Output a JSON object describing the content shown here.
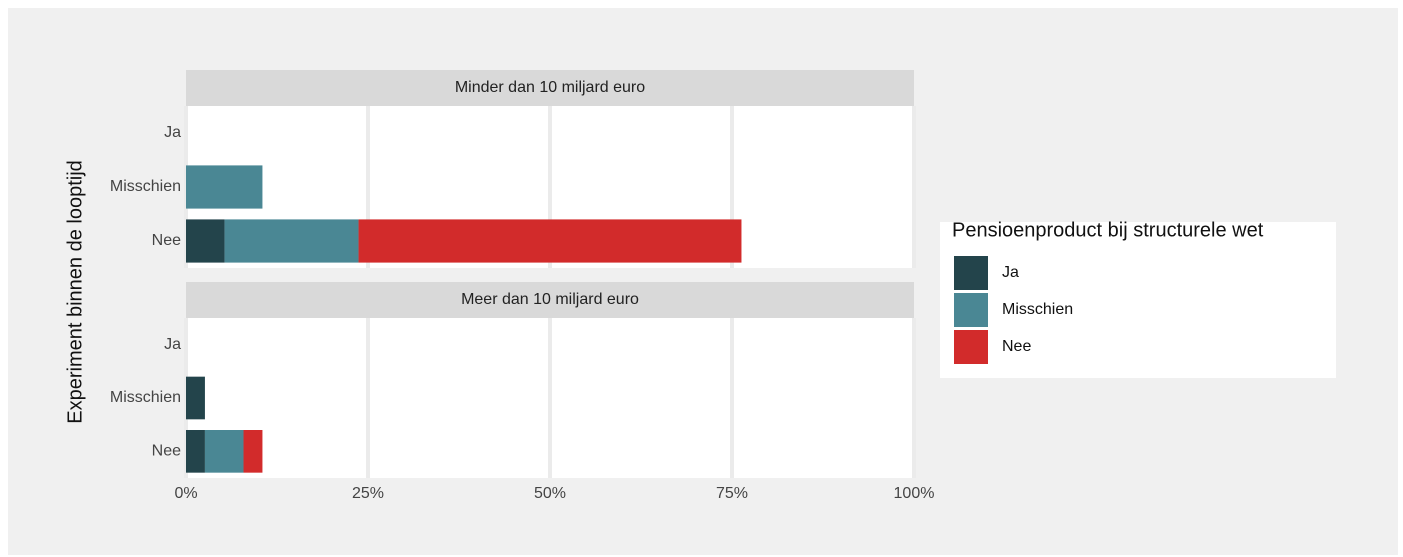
{
  "chart_data": {
    "type": "bar",
    "orientation": "horizontal",
    "stacked": true,
    "ylabel": "Experiment binnen de looptijd",
    "legend_title": "Pensioenproduct bij structurele wet",
    "legend_position": "right",
    "categories": [
      "Ja",
      "Misschien",
      "Nee"
    ],
    "facets": [
      "Minder dan 10 miljard euro",
      "Meer dan 10 miljard euro"
    ],
    "series": [
      {
        "name": "Ja",
        "color": "#23444b",
        "values": [
          [
            null,
            null,
            5.3
          ],
          [
            null,
            2.6,
            2.6
          ]
        ]
      },
      {
        "name": "Misschien",
        "color": "#4a8794",
        "values": [
          [
            null,
            10.5,
            18.4
          ],
          [
            null,
            null,
            5.3
          ]
        ]
      },
      {
        "name": "Nee",
        "color": "#d22b2b",
        "values": [
          [
            null,
            null,
            52.6
          ],
          [
            null,
            null,
            2.6
          ]
        ]
      }
    ],
    "xlim": [
      0,
      100
    ],
    "xticks": [
      {
        "value": 0,
        "label": "0%"
      },
      {
        "value": 25,
        "label": "25%"
      },
      {
        "value": 50,
        "label": "50%"
      },
      {
        "value": 75,
        "label": "75%"
      },
      {
        "value": 100,
        "label": "100%"
      }
    ],
    "grid": true
  }
}
